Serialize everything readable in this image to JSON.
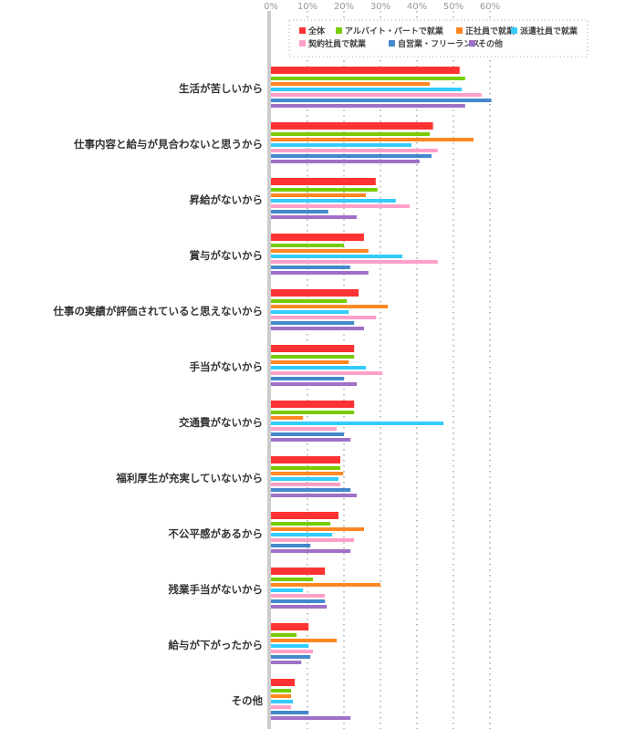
{
  "chart_data": {
    "type": "bar",
    "orientation": "horizontal",
    "xlim": [
      0,
      60
    ],
    "x_ticks": [
      "0%",
      "10%",
      "20%",
      "30%",
      "40%",
      "50%",
      "60%"
    ],
    "grid": true,
    "legend_placement": "top-right",
    "categories": [
      "生活が苦しいから",
      "仕事内容と給与が見合わないと思うから",
      "昇給がないから",
      "賞与がないから",
      "仕事の実績が評価されていると思えないから",
      "手当がないから",
      "交通費がないから",
      "福利厚生が充実していないから",
      "不公平感があるから",
      "残業手当がないから",
      "給与が下がったから",
      "その他"
    ],
    "series": [
      {
        "name": "全体",
        "color": "#ff3333",
        "values": [
          51.7,
          44.4,
          28.7,
          25.5,
          24.0,
          22.8,
          22.8,
          19.0,
          18.5,
          14.8,
          10.3,
          6.5
        ]
      },
      {
        "name": "アルバイト・パートで就業",
        "color": "#77cc00",
        "values": [
          53.2,
          43.5,
          29.2,
          20.0,
          20.8,
          22.8,
          22.8,
          19.0,
          16.3,
          11.5,
          7.0,
          5.5
        ]
      },
      {
        "name": "正社員で就業",
        "color": "#ff8822",
        "values": [
          43.5,
          55.5,
          26.0,
          26.7,
          32.0,
          21.3,
          8.8,
          19.8,
          25.5,
          30.0,
          18.0,
          5.5
        ]
      },
      {
        "name": "派遣社員で就業",
        "color": "#33ccff",
        "values": [
          52.3,
          38.5,
          34.2,
          36.0,
          21.3,
          26.0,
          47.3,
          18.5,
          16.8,
          8.8,
          10.3,
          6.0
        ]
      },
      {
        "name": "契約社員で就業",
        "color": "#ffa0c8",
        "values": [
          57.7,
          45.7,
          38.0,
          45.7,
          28.8,
          30.5,
          18.0,
          19.0,
          22.8,
          14.8,
          11.5,
          5.5
        ]
      },
      {
        "name": "自営業・フリーランス",
        "color": "#4488cc",
        "values": [
          60.4,
          44.0,
          15.7,
          21.7,
          22.8,
          20.0,
          20.0,
          21.8,
          10.8,
          14.8,
          10.8,
          10.3
        ]
      },
      {
        "name": "その他",
        "color": "#a070c8",
        "values": [
          53.2,
          40.7,
          23.5,
          26.7,
          25.5,
          23.5,
          21.8,
          23.5,
          21.8,
          15.3,
          8.3,
          21.8
        ]
      }
    ]
  }
}
